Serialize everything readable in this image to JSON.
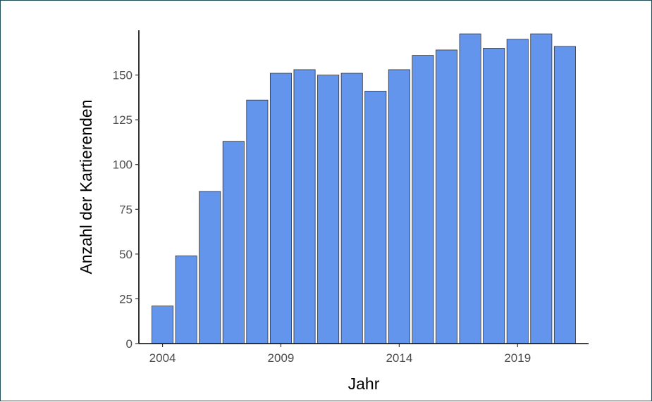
{
  "chart_data": {
    "type": "bar",
    "title": "",
    "xlabel": "Jahr",
    "ylabel": "Anzahl der Kartierenden",
    "categories": [
      2004,
      2005,
      2006,
      2007,
      2008,
      2009,
      2010,
      2011,
      2012,
      2013,
      2014,
      2015,
      2016,
      2017,
      2018,
      2019,
      2020,
      2021
    ],
    "values": [
      21,
      49,
      85,
      113,
      136,
      151,
      153,
      150,
      151,
      141,
      153,
      161,
      164,
      173,
      165,
      170,
      173,
      166
    ],
    "xticks": [
      2004,
      2009,
      2014,
      2019
    ],
    "yticks": [
      0,
      25,
      50,
      75,
      100,
      125,
      150
    ],
    "ylim": [
      0,
      175
    ],
    "xlim": [
      2003,
      2022
    ],
    "grid": false,
    "legend": "none",
    "colors": {
      "bar_fill": "#6495ED",
      "bar_stroke": "#333333",
      "axis": "#000000"
    }
  }
}
